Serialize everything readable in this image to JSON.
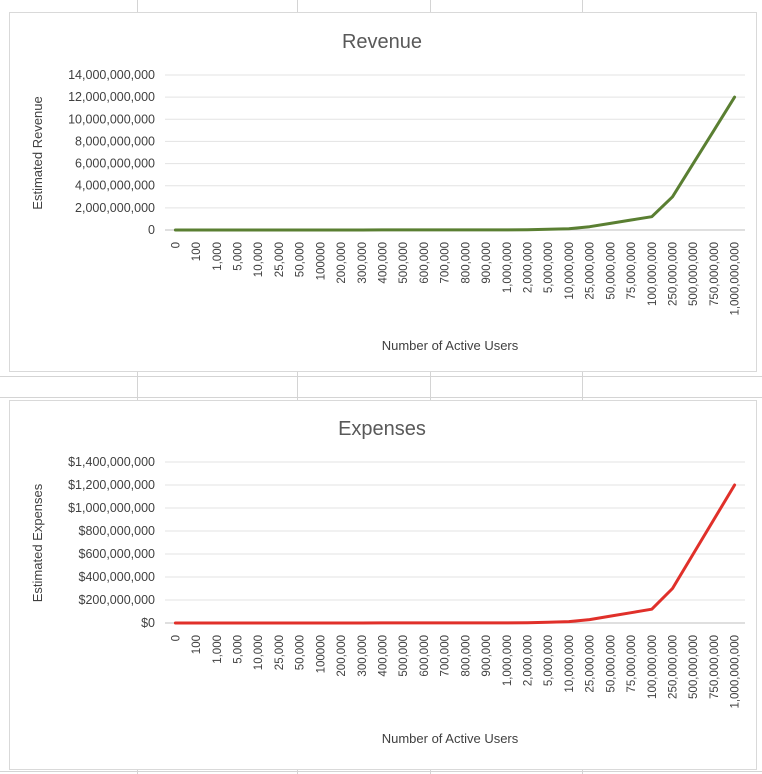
{
  "chart_data": [
    {
      "type": "line",
      "title": "Revenue",
      "xlabel": "Number of Active Users",
      "ylabel": "Estimated Revenue",
      "categories": [
        "0",
        "100",
        "1,000",
        "5,000",
        "10,000",
        "25,000",
        "50,000",
        "100000",
        "200,000",
        "300,000",
        "400,000",
        "500,000",
        "600,000",
        "700,000",
        "800,000",
        "900,000",
        "1,000,000",
        "2,000,000",
        "5,000,000",
        "10,000,000",
        "25,000,000",
        "50,000,000",
        "75,000,000",
        "100,000,000",
        "250,000,000",
        "500,000,000",
        "750,000,000",
        "1,000,000,000"
      ],
      "series": [
        {
          "values": [
            0,
            1200,
            12000,
            60000,
            120000,
            300000,
            600000,
            1200000,
            2400000,
            3600000,
            4800000,
            6000000,
            7200000,
            8400000,
            9600000,
            10800000,
            12000000,
            24000000,
            60000000,
            120000000,
            300000000,
            600000000,
            900000000,
            1200000000,
            3000000000,
            6000000000,
            9000000000,
            12000000000
          ],
          "color": "#5a7f32"
        }
      ],
      "ylim": [
        0,
        14000000000
      ],
      "yticks": [
        "0",
        "2,000,000,000",
        "4,000,000,000",
        "6,000,000,000",
        "8,000,000,000",
        "10,000,000,000",
        "12,000,000,000",
        "14,000,000,000"
      ],
      "grid": true
    },
    {
      "type": "line",
      "title": "Expenses",
      "xlabel": "Number of Active Users",
      "ylabel": "Estimated Expenses",
      "categories": [
        "0",
        "100",
        "1,000",
        "5,000",
        "10,000",
        "25,000",
        "50,000",
        "100000",
        "200,000",
        "300,000",
        "400,000",
        "500,000",
        "600,000",
        "700,000",
        "800,000",
        "900,000",
        "1,000,000",
        "2,000,000",
        "5,000,000",
        "10,000,000",
        "25,000,000",
        "50,000,000",
        "75,000,000",
        "100,000,000",
        "250,000,000",
        "500,000,000",
        "750,000,000",
        "1,000,000,000"
      ],
      "series": [
        {
          "values": [
            0,
            120,
            1200,
            6000,
            12000,
            30000,
            60000,
            120000,
            240000,
            360000,
            480000,
            600000,
            720000,
            840000,
            960000,
            1080000,
            1200000,
            2400000,
            6000000,
            12000000,
            30000000,
            60000000,
            90000000,
            120000000,
            300000000,
            600000000,
            900000000,
            1200000000
          ],
          "color": "#e0302a"
        }
      ],
      "ylim": [
        0,
        1400000000
      ],
      "yticks": [
        "$0",
        "$200,000,000",
        "$400,000,000",
        "$600,000,000",
        "$800,000,000",
        "$1,000,000,000",
        "$1,200,000,000",
        "$1,400,000,000"
      ],
      "grid": true
    }
  ]
}
